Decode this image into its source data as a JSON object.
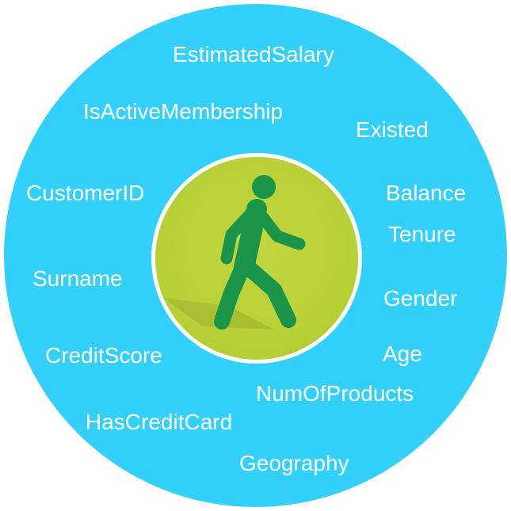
{
  "colors": {
    "outer_circle": "#33d0fb",
    "inner_circle": "#b7cf36",
    "figure": "#1a9448",
    "text": "#ffffff"
  },
  "center_icon": "walking-person-icon",
  "attributes": [
    "EstimatedSalary",
    "IsActiveMembership",
    "Existed",
    "CustomerID",
    "Balance",
    "Tenure",
    "Surname",
    "Gender",
    "CreditScore",
    "Age",
    "NumOfProducts",
    "HasCreditCard",
    "Geography"
  ]
}
